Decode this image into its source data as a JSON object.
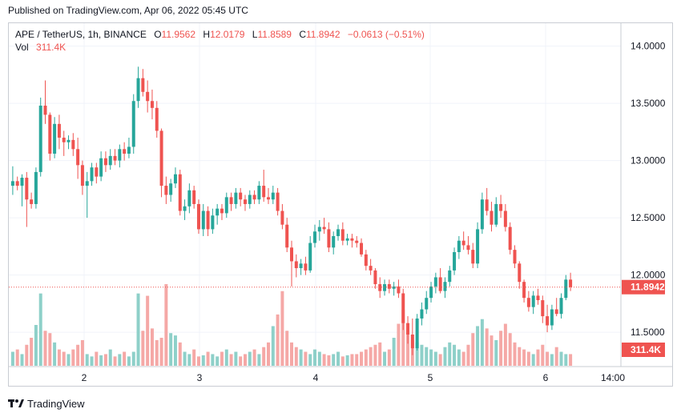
{
  "published": "Published on TradingView.com, Apr 06, 2022 05:45 UTC",
  "legend": {
    "symbol": "APE / TetherUS, 1h, BINANCE",
    "o_label": "O",
    "o_value": "11.9562",
    "h_label": "H",
    "h_value": "12.0179",
    "l_label": "L",
    "l_value": "11.8589",
    "c_label": "C",
    "c_value": "11.8942",
    "change": "−0.0613 (−0.51%)",
    "vol_label": "Vol",
    "vol_value": "311.4K"
  },
  "brand": "TradingView",
  "colors": {
    "up": "#26a69a",
    "down": "#ef5350",
    "vol_up": "#8ed0c9",
    "vol_down": "#f5a8a6",
    "grid": "#f0f3fa",
    "axis_text": "#131722",
    "price_label_bg": "#ef5350"
  },
  "chart_data": {
    "type": "candlestick",
    "price_axis": {
      "ticks": [
        "14.0000",
        "13.5000",
        "13.0000",
        "12.5000",
        "12.0000",
        "11.5000"
      ],
      "range": [
        11.2,
        14.2
      ]
    },
    "time_axis": {
      "ticks": [
        "2",
        "3",
        "4",
        "5",
        "6",
        "14:00"
      ]
    },
    "last_price_label": "11.8942",
    "last_price": 11.8942,
    "last_volume_label": "311.4K",
    "ohlc": [
      [
        12.78,
        12.95,
        12.7,
        12.82
      ],
      [
        12.82,
        12.86,
        12.74,
        12.78
      ],
      [
        12.78,
        12.88,
        12.6,
        12.85
      ],
      [
        12.85,
        12.9,
        12.42,
        12.66
      ],
      [
        12.66,
        12.72,
        12.58,
        12.62
      ],
      [
        12.62,
        12.94,
        12.58,
        12.9
      ],
      [
        12.9,
        13.55,
        12.86,
        13.48
      ],
      [
        13.48,
        13.7,
        13.32,
        13.4
      ],
      [
        13.4,
        13.42,
        13.0,
        13.06
      ],
      [
        13.06,
        13.38,
        13.02,
        13.32
      ],
      [
        13.32,
        13.4,
        13.1,
        13.2
      ],
      [
        13.2,
        13.26,
        13.04,
        13.16
      ],
      [
        13.16,
        13.22,
        13.1,
        13.18
      ],
      [
        13.18,
        13.24,
        13.04,
        13.1
      ],
      [
        13.1,
        13.2,
        12.84,
        12.96
      ],
      [
        12.96,
        13.0,
        12.7,
        12.78
      ],
      [
        12.78,
        12.9,
        12.5,
        12.82
      ],
      [
        12.82,
        12.98,
        12.78,
        12.94
      ],
      [
        12.94,
        12.98,
        12.8,
        12.86
      ],
      [
        12.86,
        13.08,
        12.82,
        13.02
      ],
      [
        13.02,
        13.08,
        12.9,
        12.96
      ],
      [
        12.96,
        13.1,
        12.92,
        13.04
      ],
      [
        13.04,
        13.1,
        12.96,
        13.0
      ],
      [
        13.0,
        13.14,
        12.94,
        13.1
      ],
      [
        13.1,
        13.16,
        13.0,
        13.06
      ],
      [
        13.06,
        13.2,
        13.02,
        13.12
      ],
      [
        13.12,
        13.58,
        13.06,
        13.52
      ],
      [
        13.52,
        13.82,
        13.46,
        13.72
      ],
      [
        13.72,
        13.8,
        13.56,
        13.6
      ],
      [
        13.6,
        13.7,
        13.42,
        13.52
      ],
      [
        13.52,
        13.62,
        13.36,
        13.46
      ],
      [
        13.46,
        13.52,
        13.2,
        13.26
      ],
      [
        13.26,
        13.28,
        12.68,
        12.78
      ],
      [
        12.78,
        12.86,
        12.62,
        12.7
      ],
      [
        12.7,
        12.84,
        12.64,
        12.8
      ],
      [
        12.8,
        12.94,
        12.76,
        12.88
      ],
      [
        12.88,
        12.92,
        12.52,
        12.56
      ],
      [
        12.56,
        12.66,
        12.48,
        12.6
      ],
      [
        12.6,
        12.8,
        12.54,
        12.74
      ],
      [
        12.74,
        12.78,
        12.58,
        12.62
      ],
      [
        12.62,
        12.66,
        12.36,
        12.4
      ],
      [
        12.4,
        12.62,
        12.34,
        12.56
      ],
      [
        12.56,
        12.6,
        12.34,
        12.4
      ],
      [
        12.4,
        12.58,
        12.36,
        12.52
      ],
      [
        12.52,
        12.62,
        12.44,
        12.58
      ],
      [
        12.58,
        12.62,
        12.48,
        12.54
      ],
      [
        12.54,
        12.72,
        12.5,
        12.68
      ],
      [
        12.68,
        12.72,
        12.56,
        12.62
      ],
      [
        12.62,
        12.76,
        12.58,
        12.72
      ],
      [
        12.72,
        12.76,
        12.6,
        12.66
      ],
      [
        12.66,
        12.7,
        12.56,
        12.62
      ],
      [
        12.62,
        12.74,
        12.58,
        12.7
      ],
      [
        12.7,
        12.74,
        12.62,
        12.66
      ],
      [
        12.66,
        12.82,
        12.62,
        12.78
      ],
      [
        12.78,
        12.92,
        12.64,
        12.68
      ],
      [
        12.68,
        12.76,
        12.62,
        12.66
      ],
      [
        12.66,
        12.78,
        12.62,
        12.72
      ],
      [
        12.72,
        12.76,
        12.52,
        12.56
      ],
      [
        12.56,
        12.62,
        12.4,
        12.44
      ],
      [
        12.44,
        12.5,
        12.2,
        12.24
      ],
      [
        12.24,
        12.3,
        11.9,
        12.12
      ],
      [
        12.12,
        12.18,
        11.98,
        12.06
      ],
      [
        12.06,
        12.14,
        12.0,
        12.1
      ],
      [
        12.1,
        12.16,
        12.0,
        12.04
      ],
      [
        12.04,
        12.34,
        12.02,
        12.28
      ],
      [
        12.28,
        12.44,
        12.24,
        12.38
      ],
      [
        12.38,
        12.48,
        12.3,
        12.42
      ],
      [
        12.42,
        12.5,
        12.36,
        12.4
      ],
      [
        12.4,
        12.46,
        12.2,
        12.24
      ],
      [
        12.24,
        12.38,
        12.18,
        12.34
      ],
      [
        12.34,
        12.44,
        12.3,
        12.4
      ],
      [
        12.4,
        12.46,
        12.26,
        12.3
      ],
      [
        12.3,
        12.36,
        12.26,
        12.32
      ],
      [
        12.32,
        12.36,
        12.24,
        12.3
      ],
      [
        12.3,
        12.34,
        12.24,
        12.28
      ],
      [
        12.28,
        12.32,
        12.16,
        12.18
      ],
      [
        12.18,
        12.22,
        12.04,
        12.08
      ],
      [
        12.08,
        12.14,
        12.0,
        12.04
      ],
      [
        12.04,
        12.06,
        11.88,
        11.92
      ],
      [
        11.92,
        11.98,
        11.8,
        11.86
      ],
      [
        11.86,
        11.96,
        11.82,
        11.92
      ],
      [
        11.92,
        11.96,
        11.84,
        11.88
      ],
      [
        11.88,
        11.94,
        11.82,
        11.9
      ],
      [
        11.9,
        11.96,
        11.8,
        11.84
      ],
      [
        11.84,
        11.88,
        11.52,
        11.58
      ],
      [
        11.58,
        11.64,
        11.4,
        11.48
      ],
      [
        11.48,
        11.62,
        11.3,
        11.36
      ],
      [
        11.36,
        11.66,
        11.34,
        11.62
      ],
      [
        11.62,
        11.76,
        11.56,
        11.7
      ],
      [
        11.7,
        11.86,
        11.66,
        11.8
      ],
      [
        11.8,
        11.94,
        11.76,
        11.9
      ],
      [
        11.9,
        12.02,
        11.84,
        11.98
      ],
      [
        11.98,
        12.06,
        11.84,
        11.86
      ],
      [
        11.86,
        11.98,
        11.8,
        11.94
      ],
      [
        11.94,
        12.08,
        11.9,
        12.04
      ],
      [
        12.04,
        12.24,
        12.0,
        12.2
      ],
      [
        12.2,
        12.34,
        12.14,
        12.3
      ],
      [
        12.3,
        12.38,
        12.22,
        12.26
      ],
      [
        12.26,
        12.34,
        12.18,
        12.22
      ],
      [
        12.22,
        12.28,
        12.06,
        12.1
      ],
      [
        12.1,
        12.46,
        12.06,
        12.4
      ],
      [
        12.4,
        12.72,
        12.36,
        12.66
      ],
      [
        12.66,
        12.76,
        12.52,
        12.56
      ],
      [
        12.56,
        12.64,
        12.38,
        12.44
      ],
      [
        12.44,
        12.68,
        12.42,
        12.62
      ],
      [
        12.62,
        12.7,
        12.5,
        12.56
      ],
      [
        12.56,
        12.62,
        12.38,
        12.42
      ],
      [
        12.42,
        12.46,
        12.18,
        12.22
      ],
      [
        12.22,
        12.26,
        12.06,
        12.1
      ],
      [
        12.1,
        12.12,
        11.88,
        11.94
      ],
      [
        11.94,
        11.96,
        11.76,
        11.8
      ],
      [
        11.8,
        11.86,
        11.68,
        11.72
      ],
      [
        11.72,
        11.86,
        11.66,
        11.82
      ],
      [
        11.82,
        11.88,
        11.74,
        11.78
      ],
      [
        11.78,
        11.82,
        11.58,
        11.64
      ],
      [
        11.64,
        11.74,
        11.5,
        11.56
      ],
      [
        11.56,
        11.74,
        11.52,
        11.7
      ],
      [
        11.7,
        11.8,
        11.64,
        11.66
      ],
      [
        11.66,
        11.84,
        11.62,
        11.8
      ],
      [
        11.8,
        12.0,
        11.78,
        11.96
      ],
      [
        11.96,
        12.02,
        11.86,
        11.8942
      ]
    ],
    "volume": [
      12,
      14,
      10,
      18,
      24,
      35,
      62,
      30,
      28,
      20,
      14,
      12,
      10,
      14,
      18,
      22,
      10,
      8,
      12,
      9,
      10,
      14,
      8,
      10,
      12,
      8,
      12,
      62,
      30,
      60,
      32,
      22,
      24,
      70,
      28,
      26,
      20,
      12,
      10,
      14,
      8,
      9,
      12,
      10,
      8,
      12,
      14,
      10,
      12,
      8,
      10,
      12,
      14,
      10,
      16,
      20,
      34,
      44,
      64,
      30,
      20,
      16,
      14,
      12,
      10,
      14,
      12,
      10,
      9,
      10,
      12,
      8,
      9,
      10,
      10,
      12,
      14,
      16,
      18,
      20,
      12,
      14,
      24,
      36,
      48,
      28,
      22,
      20,
      18,
      16,
      14,
      12,
      10,
      16,
      20,
      18,
      14,
      12,
      18,
      28,
      34,
      40,
      32,
      26,
      22,
      30,
      36,
      28,
      20,
      16,
      14,
      12,
      10,
      14,
      18,
      12,
      10,
      16,
      12,
      10,
      10
    ]
  }
}
